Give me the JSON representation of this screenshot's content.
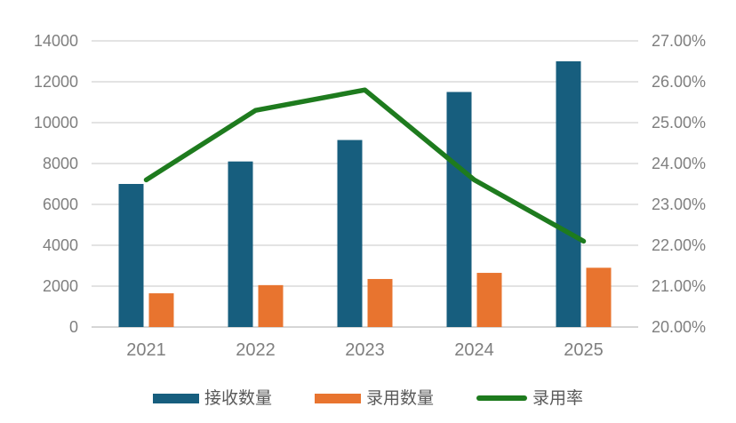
{
  "chart_data": {
    "type": "bar",
    "subtype": "bar-line-combo",
    "title": "",
    "categories": [
      "2021",
      "2022",
      "2023",
      "2024",
      "2025"
    ],
    "series": [
      {
        "name": "接收数量",
        "kind": "bar",
        "axis": "left",
        "color": "#175E7E",
        "values": [
          7000,
          8100,
          9150,
          11500,
          13000
        ]
      },
      {
        "name": "录用数量",
        "kind": "bar",
        "axis": "left",
        "color": "#E8742F",
        "values": [
          1650,
          2050,
          2350,
          2650,
          2900
        ]
      },
      {
        "name": "录用率",
        "kind": "line",
        "axis": "right",
        "color": "#1E7B1E",
        "values": [
          23.6,
          25.3,
          25.8,
          23.6,
          22.1
        ]
      }
    ],
    "left_axis": {
      "min": 0,
      "max": 14000,
      "step": 2000,
      "ticks": [
        "0",
        "2000",
        "4000",
        "6000",
        "8000",
        "10000",
        "12000",
        "14000"
      ]
    },
    "right_axis": {
      "min": 20,
      "max": 27,
      "step": 1,
      "ticks": [
        "20.00%",
        "21.00%",
        "22.00%",
        "23.00%",
        "24.00%",
        "25.00%",
        "26.00%",
        "27.00%"
      ]
    },
    "grid": true,
    "legend_position": "bottom"
  },
  "legend": {
    "items": [
      {
        "label": "接收数量",
        "color": "#175E7E",
        "marker": "rect"
      },
      {
        "label": "录用数量",
        "color": "#E8742F",
        "marker": "rect"
      },
      {
        "label": "录用率",
        "color": "#1E7B1E",
        "marker": "line"
      }
    ]
  },
  "colors": {
    "background": "#FFFFFF",
    "gridline": "#DADADA",
    "zero_line": "#C8C8C8",
    "axis_text": "#7F7F7F",
    "legend_text": "#595959"
  }
}
